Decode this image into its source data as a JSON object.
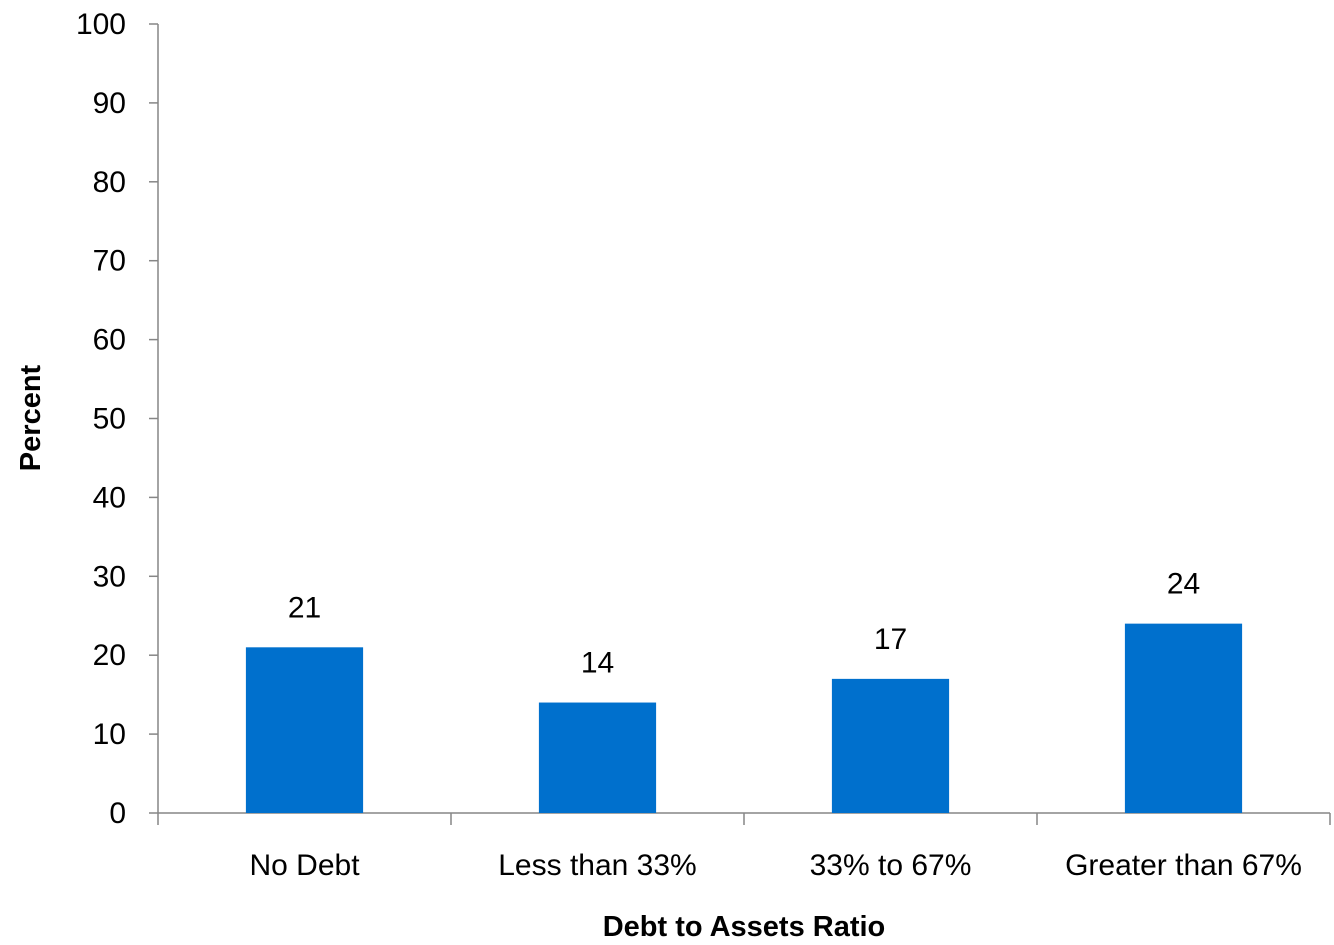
{
  "chart_data": {
    "type": "bar",
    "title": "",
    "xlabel": "Debt to Assets Ratio",
    "ylabel": "Percent",
    "categories": [
      "No Debt",
      "Less than 33%",
      "33% to 67%",
      "Greater than 67%"
    ],
    "values": [
      21,
      14,
      17,
      24
    ],
    "data_labels": [
      "21",
      "14",
      "17",
      "24"
    ],
    "ylim": [
      0,
      100
    ],
    "yticks": [
      0,
      10,
      20,
      30,
      40,
      50,
      60,
      70,
      80,
      90,
      100
    ],
    "grid": false,
    "legend": "none",
    "bar_color": "#0070cd"
  }
}
